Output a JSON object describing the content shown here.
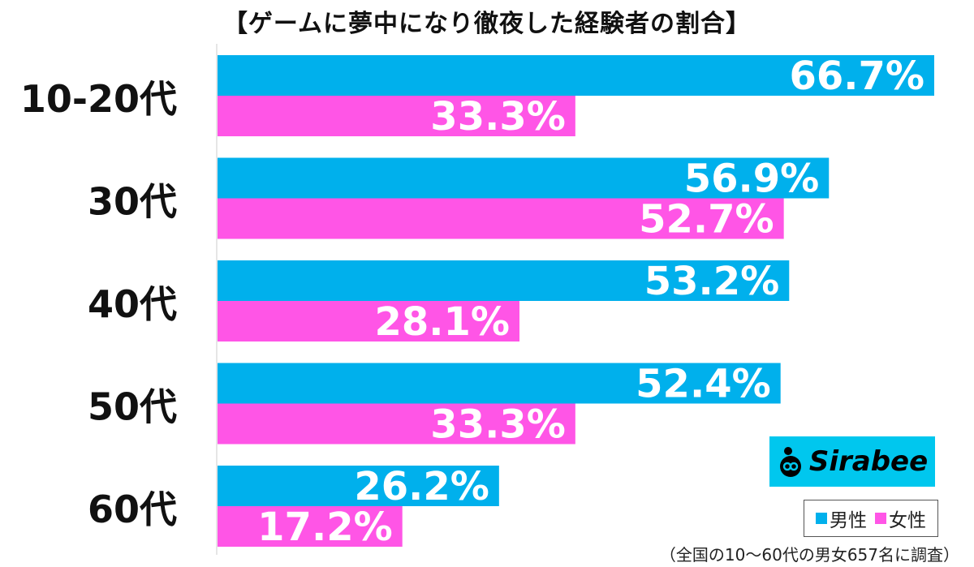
{
  "chart_data": {
    "type": "bar",
    "orientation": "horizontal",
    "title": "【ゲームに夢中になり徹夜した経験者の割合】",
    "categories": [
      "10-20代",
      "30代",
      "40代",
      "50代",
      "60代"
    ],
    "series": [
      {
        "name": "男性",
        "color": "#00b0ec",
        "values": [
          66.7,
          56.9,
          53.2,
          52.4,
          26.2
        ],
        "labels": [
          "66.7%",
          "56.9%",
          "53.2%",
          "52.4%",
          "26.2%"
        ]
      },
      {
        "name": "女性",
        "color": "#ff55e6",
        "values": [
          33.3,
          52.7,
          28.1,
          33.3,
          17.2
        ],
        "labels": [
          "33.3%",
          "52.7%",
          "28.1%",
          "33.3%",
          "17.2%"
        ]
      }
    ],
    "xlim": [
      0,
      100
    ],
    "grid": false,
    "legend": "bottom-right",
    "footnote": "（全国の10〜60代の男女657名に調査）"
  },
  "brand": {
    "name": "Sirabee",
    "color": "#00c7ee"
  }
}
